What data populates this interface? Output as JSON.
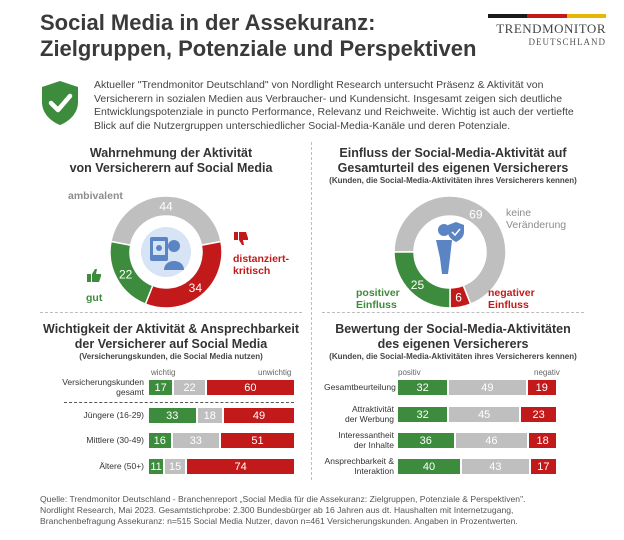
{
  "header": {
    "title_line1": "Social Media in der Assekuranz:",
    "title_line2": "Zielgruppen, Potenziale und Perspektiven",
    "logo_line1": "TRENDMONITOR",
    "logo_line2": "DEUTSCHLAND",
    "flag_colors": [
      "#1a1a1a",
      "#c21a1a",
      "#e6b800"
    ],
    "intro": "Aktueller \"Trendmonitor Deutschland\" von Nordlight Research untersucht Präsenz & Aktivität von Versicherern in sozialen Medien aus Verbraucher- und Kundensicht. Insgesamt zeigen sich deutliche Entwicklungspotenziale in puncto Performance, Relevanz und Reichweite. Wichtig ist auch der vertiefte Blick auf die Nutzergruppen unterschiedlicher Social-Media-Kanäle und deren Potenziale."
  },
  "colors": {
    "positive": "#3d8c3d",
    "neutral": "#bfbfbf",
    "negative": "#c21a1a",
    "shield": "#3d8c3d"
  },
  "chart_data": [
    {
      "type": "pie",
      "title": "Wahrnehmung der Aktivität von Versicherern auf Social Media",
      "title_line1": "Wahrnehmung der Aktivität",
      "title_line2": "von Versicherern auf Social Media",
      "slices": [
        {
          "label": "ambivalent",
          "value": 44
        },
        {
          "label": "distanziert-kritisch",
          "value": 34
        },
        {
          "label": "gut",
          "value": 22
        }
      ],
      "label_text": {
        "ambivalent": "ambivalent",
        "kritisch_1": "distanziert-",
        "kritisch_2": "kritisch",
        "gut": "gut"
      }
    },
    {
      "type": "pie",
      "title": "Einfluss der Social-Media-Aktivität auf Gesamturteil des eigenen Versicherers",
      "title_line1": "Einfluss der Social-Media-Aktivität auf",
      "title_line2": "Gesamturteil des eigenen Versicherers",
      "subtitle": "(Kunden, die Social-Media-Aktivitäten ihres Versicherers kennen)",
      "slices": [
        {
          "label": "keine Veränderung",
          "value": 69
        },
        {
          "label": "negativer Einfluss",
          "value": 6
        },
        {
          "label": "positiver Einfluss",
          "value": 25
        }
      ],
      "label_text": {
        "keine_1": "keine",
        "keine_2": "Veränderung",
        "neg_1": "negativer",
        "neg_2": "Einfluss",
        "pos_1": "positiver",
        "pos_2": "Einfluss"
      }
    },
    {
      "type": "bar",
      "stacked": true,
      "title": "Wichtigkeit der Aktivität & Ansprechbarkeit der Versicherer auf Social Media",
      "title_line1": "Wichtigkeit der Aktivität & Ansprechbarkeit",
      "title_line2": "der Versicherer auf Social Media",
      "subtitle": "(Versicherungskunden, die Social Media nutzen)",
      "scale_left": "wichtig",
      "scale_right": "unwichtig",
      "categories": [
        "Versicherungskunden gesamt",
        "Jüngere (16-29)",
        "Mittlere (30-49)",
        "Ältere (50+)"
      ],
      "category_lines": [
        [
          "Versicherungskunden",
          "gesamt"
        ],
        [
          "Jüngere (16-29)"
        ],
        [
          "Mittlere (30-49)"
        ],
        [
          "Ältere (50+)"
        ]
      ],
      "series": [
        {
          "values": [
            17,
            33,
            16,
            11
          ]
        },
        {
          "values": [
            22,
            18,
            33,
            15
          ]
        },
        {
          "values": [
            60,
            49,
            51,
            74
          ]
        }
      ]
    },
    {
      "type": "bar",
      "stacked": true,
      "title": "Bewertung der Social-Media-Aktivitäten des eigenen Versicherers",
      "title_line1": "Bewertung der Social-Media-Aktivitäten",
      "title_line2": "des eigenen Versicherers",
      "subtitle": "(Kunden, die Social-Media-Aktivitäten ihres Versicherers kennen)",
      "scale_left": "positiv",
      "scale_right": "negativ",
      "categories": [
        "Gesamtbeurteilung",
        "Attraktivität der Werbung",
        "Interessantheit der Inhalte",
        "Ansprechbarkeit & Interaktion"
      ],
      "category_lines": [
        [
          "Gesamtbeurteilung"
        ],
        [
          "Attraktivität",
          "der Werbung"
        ],
        [
          "Interessantheit",
          "der Inhalte"
        ],
        [
          "Ansprechbarkeit &",
          "Interaktion"
        ]
      ],
      "series": [
        {
          "values": [
            32,
            32,
            36,
            40
          ]
        },
        {
          "values": [
            49,
            45,
            46,
            43
          ]
        },
        {
          "values": [
            19,
            23,
            18,
            17
          ]
        }
      ]
    }
  ],
  "source": {
    "line1": "Quelle: Trendmonitor Deutschland - Branchenreport „Social Media für die Assekuranz: Zielgruppen, Potenziale & Perspektiven\".",
    "line2": "Nordlight Research,   Mai 2023. Gesamtstichprobe: 2.300 Bundesbürger ab 16 Jahren aus dt. Haushalten mit Internetzugang,",
    "line3": "Branchenbefragung Assekuranz: n=515 Social Media Nutzer, davon n=461 Versicherungskunden. Angaben in Prozentwerten."
  }
}
